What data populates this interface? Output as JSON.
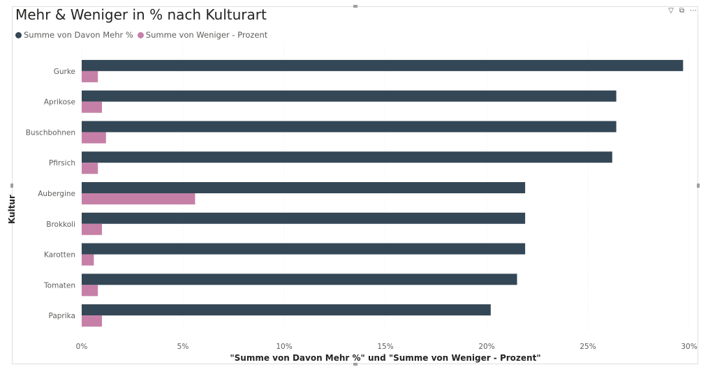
{
  "title": "Mehr & Weniger in % nach Kulturart",
  "header_icons": [
    {
      "name": "filter-icon",
      "glyph": "▽"
    },
    {
      "name": "focus-mode-icon",
      "glyph": "⧉"
    },
    {
      "name": "more-options-icon",
      "glyph": "⋯"
    }
  ],
  "chart_data": {
    "type": "bar",
    "orientation": "horizontal",
    "title": "Mehr & Weniger in % nach Kulturart",
    "xlabel": "\"Summe von Davon Mehr %\" und \"Summe von Weniger - Prozent\"",
    "ylabel": "Kultur",
    "xlim": [
      0,
      30
    ],
    "xticks": [
      0,
      5,
      10,
      15,
      20,
      25,
      30
    ],
    "xtick_labels": [
      "0%",
      "5%",
      "10%",
      "15%",
      "20%",
      "25%",
      "30%"
    ],
    "grid": true,
    "legend_position": "top-left",
    "categories": [
      "Gurke",
      "Aprikose",
      "Buschbohnen",
      "Pfirsich",
      "Aubergine",
      "Brokkoli",
      "Karotten",
      "Tomaten",
      "Paprika"
    ],
    "series": [
      {
        "name": "Summe von Davon Mehr %",
        "color": "#344756",
        "values": [
          29.7,
          26.4,
          26.4,
          26.2,
          21.9,
          21.9,
          21.9,
          21.5,
          20.2
        ]
      },
      {
        "name": "Summe von Weniger - Prozent",
        "color": "#c680a8",
        "values": [
          0.8,
          1.0,
          1.2,
          0.8,
          5.6,
          1.0,
          0.6,
          0.8,
          1.0
        ]
      }
    ]
  }
}
